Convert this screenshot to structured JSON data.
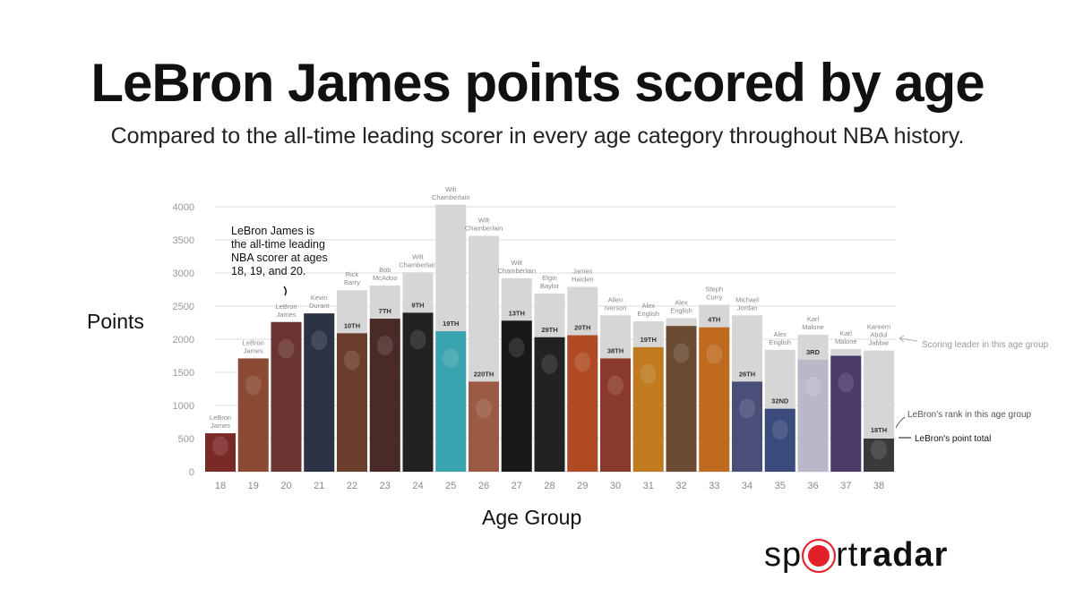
{
  "header": {
    "title": "LeBron James points scored by age",
    "subtitle": "Compared to the all-time leading scorer in every age category throughout NBA history."
  },
  "brand": {
    "logo_text_1": "sp",
    "logo_text_2": "rt",
    "logo_text_3": "radar",
    "accent": "#e3202a"
  },
  "chart_data": {
    "type": "bar",
    "xlabel": "Age Group",
    "ylabel": "Points",
    "ylim": [
      0,
      4000
    ],
    "yticks": [
      0,
      500,
      1000,
      1500,
      2000,
      2500,
      3000,
      3500,
      4000
    ],
    "grid": true,
    "categories": [
      "18",
      "19",
      "20",
      "21",
      "22",
      "23",
      "24",
      "25",
      "26",
      "27",
      "28",
      "29",
      "30",
      "31",
      "32",
      "33",
      "34",
      "35",
      "36",
      "37",
      "38"
    ],
    "series": [
      {
        "role": "leader",
        "values": [
          580,
          1710,
          2260,
          2390,
          2740,
          2810,
          3010,
          4030,
          3560,
          2920,
          2690,
          2790,
          2360,
          2270,
          2320,
          2520,
          2360,
          1840,
          2070,
          1850,
          1830
        ],
        "names": [
          "LeBron\nJames",
          "LeBron\nJames",
          "LeBron\nJames",
          "Kevin\nDurant",
          "Rick\nBarry",
          "Bob\nMcAdoo",
          "Wilt\nChamberlain",
          "Wilt\nChamberlain",
          "Wilt\nChamberlain",
          "Wilt\nChamberlain",
          "Elgin\nBaylor",
          "James\nHarden",
          "Allen\nIverson",
          "Alex\nEnglish",
          "Alex\nEnglish",
          "Steph\nCurry",
          "Michael\nJordan",
          "Alex\nEnglish",
          "Karl\nMalone",
          "Karl\nMalone",
          "Kareem\nAbdul\nJabbar"
        ]
      },
      {
        "role": "lebron",
        "values": [
          580,
          1710,
          2260,
          2390,
          2090,
          2310,
          2400,
          2120,
          1360,
          2280,
          2030,
          2060,
          1710,
          1880,
          2200,
          2180,
          1360,
          950,
          1690,
          1750,
          500
        ],
        "ranks": [
          "",
          "",
          "",
          "",
          "10TH",
          "7TH",
          "9TH",
          "19TH",
          "220TH",
          "13TH",
          "29TH",
          "20TH",
          "38TH",
          "19TH",
          "",
          "4TH",
          "26TH",
          "32ND",
          "3RD",
          "",
          ""
        ]
      }
    ],
    "bar_tones": [
      "#7a2a26",
      "#8a4a33",
      "#6a3530",
      "#2a3244",
      "#6b3d2c",
      "#4a2a26",
      "#222222",
      "#3aa3b0",
      "#9a5a44",
      "#181818",
      "#222222",
      "#b04a22",
      "#8a3a2a",
      "#c07a20",
      "#6a4a30",
      "#c06a20",
      "#4a4f7a",
      "#3a4a7a",
      "#b8b8c8",
      "#4a3a6a",
      "#3a3a3a"
    ],
    "annotations": {
      "lebron_note": [
        "LeBron James is",
        "the all-time leading",
        "NBA scorer at ages",
        "18, 19, and 20."
      ],
      "rank_38": "18TH",
      "scoring_leader": "Scoring leader in this age group",
      "rank_label": "LeBron's rank in this age group",
      "point_total": "LeBron's point total"
    }
  }
}
